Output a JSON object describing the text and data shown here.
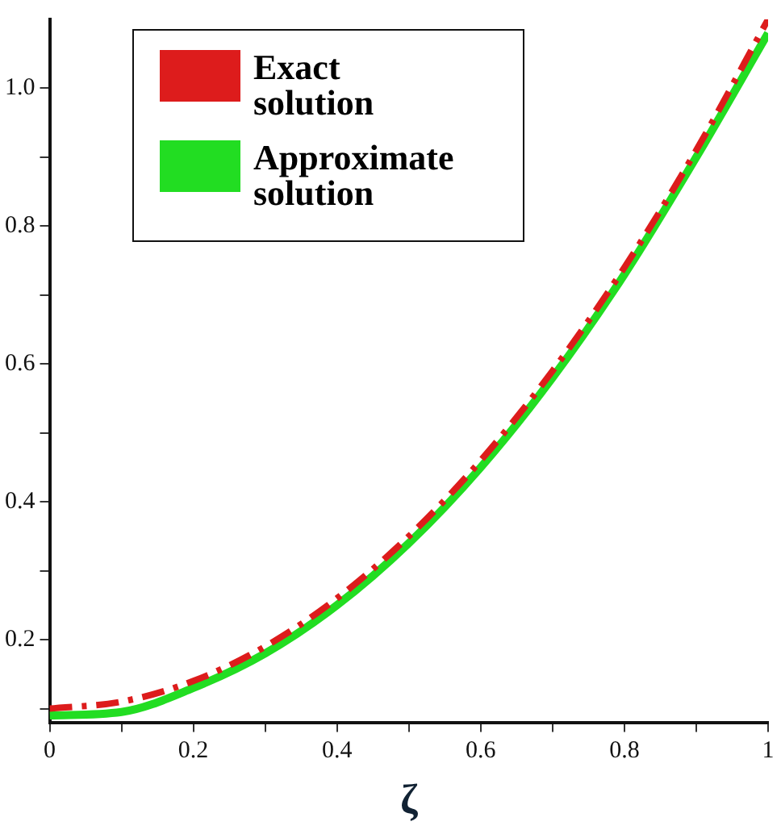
{
  "chart_data": {
    "type": "line",
    "xlabel": "ζ",
    "x": [
      0,
      0.1,
      0.2,
      0.3,
      0.4,
      0.5,
      0.6,
      0.7,
      0.8,
      0.9,
      1.0
    ],
    "series": [
      {
        "name": "Exact solution",
        "color": "#dd1c1c",
        "line_style": "dashed",
        "values": [
          0.1,
          0.11,
          0.14,
          0.19,
          0.26,
          0.35,
          0.46,
          0.59,
          0.74,
          0.91,
          1.1
        ]
      },
      {
        "name": "Approximate solution",
        "color": "#22dd22",
        "line_style": "solid",
        "values": [
          0.09,
          0.095,
          0.13,
          0.18,
          0.25,
          0.34,
          0.45,
          0.58,
          0.73,
          0.9,
          1.08
        ]
      }
    ],
    "xlim": [
      0,
      1
    ],
    "ylim": [
      0.08,
      1.1
    ],
    "xticks": [
      0,
      {
        "value": 0.1,
        "label": null
      },
      0.2,
      {
        "value": 0.3,
        "label": null
      },
      0.4,
      {
        "value": 0.5,
        "label": null
      },
      0.6,
      {
        "value": 0.7,
        "label": null
      },
      0.8,
      {
        "value": 0.9,
        "label": null
      },
      1
    ],
    "yticks": [
      {
        "value": 0.1,
        "label": null
      },
      0.2,
      {
        "value": 0.3,
        "label": null
      },
      0.4,
      {
        "value": 0.5,
        "label": null
      },
      0.6,
      {
        "value": 0.7,
        "label": null
      },
      0.8,
      {
        "value": 0.9,
        "label": null
      },
      {
        "value": 1,
        "label": "1.0"
      }
    ],
    "grid": false,
    "legend": "top left",
    "marker": "none"
  }
}
